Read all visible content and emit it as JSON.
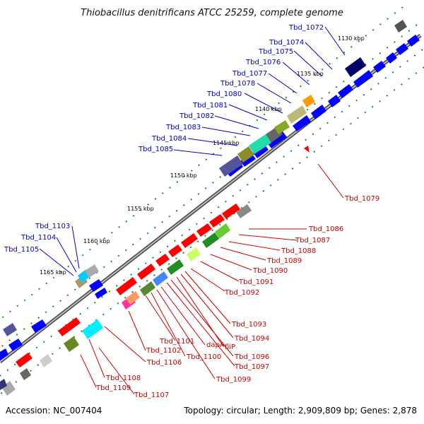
{
  "title": "Thiobacillus denitrificans ATCC 25259, complete genome",
  "footer": {
    "accession": "Accession: NC_007404",
    "summary": "Topology: circular; Length: 2,909,809 bp; Genes: 2,878"
  },
  "scale_ticks": [
    "1130 kbp",
    "1135 kbp",
    "1140 kbp",
    "1145 kbp",
    "1150 kbp",
    "1155 kbp",
    "1160 kbp",
    "1165 kbp"
  ],
  "labels_upper": [
    "Tbd_1072",
    "Tbd_1074",
    "Tbd_1075",
    "Tbd_1076",
    "Tbd_1077",
    "Tbd_1078",
    "Tbd_1080",
    "Tbd_1081",
    "Tbd_1082",
    "Tbd_1083",
    "Tbd_1084",
    "Tbd_1085"
  ],
  "labels_upper_left": [
    "Tbd_1103",
    "Tbd_1104",
    "Tbd_1105"
  ],
  "label_1079": "Tbd_1079",
  "labels_lower_right": [
    "Tbd_1086",
    "Tbd_1087",
    "Tbd_1088",
    "Tbd_1089",
    "Tbd_1090",
    "Tbd_1091",
    "Tbd_1092"
  ],
  "labels_bottom": [
    "Tbd_1093",
    "Tbd_1094",
    "fliP",
    "Tbd_1096",
    "Tbd_1097",
    "dapA",
    "Tbd_1099",
    "Tbd_1100",
    "Tbd_1101",
    "Tbd_1102",
    "Tbd_1106",
    "Tbd_1108",
    "Tbd_1109",
    "Tbd_1107"
  ],
  "colors": {
    "forward": "#0000ff",
    "reverse": "#ff0000",
    "backbone": "#888888",
    "tick": "#228b22",
    "label_forward": "#0000cc",
    "label_reverse": "#cc0000"
  }
}
